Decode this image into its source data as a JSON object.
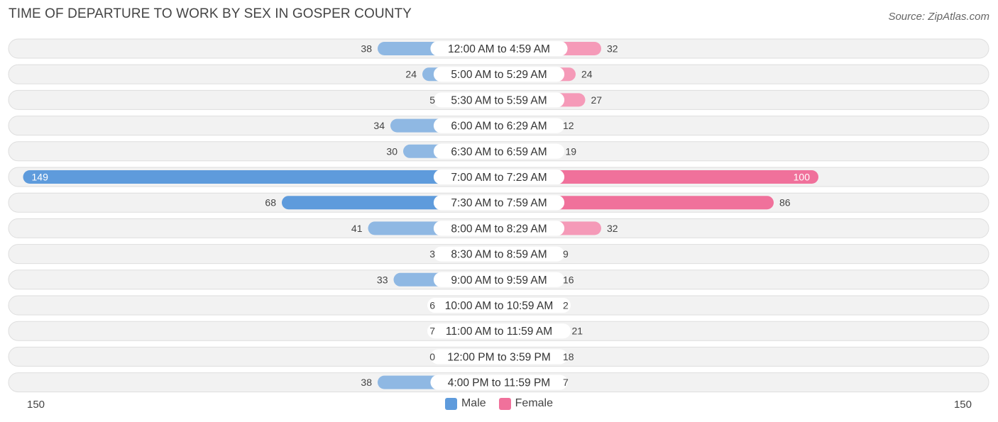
{
  "header": {
    "title": "TIME OF DEPARTURE TO WORK BY SEX IN GOSPER COUNTY",
    "source": "Source: ZipAtlas.com"
  },
  "axis": {
    "left_label": "150",
    "right_label": "150"
  },
  "legend": {
    "male_label": "Male",
    "female_label": "Female"
  },
  "colors": {
    "male": "#8fb8e3",
    "male_strong": "#5e9bdc",
    "female": "#f59ab8",
    "female_strong": "#f0719b",
    "row_bg": "#f2f2f2",
    "row_border": "#dedede"
  },
  "chart_data": {
    "type": "bar",
    "orientation": "diverging-horizontal",
    "title": "TIME OF DEPARTURE TO WORK BY SEX IN GOSPER COUNTY",
    "xlim": [
      -150,
      150
    ],
    "categories": [
      "12:00 AM to 4:59 AM",
      "5:00 AM to 5:29 AM",
      "5:30 AM to 5:59 AM",
      "6:00 AM to 6:29 AM",
      "6:30 AM to 6:59 AM",
      "7:00 AM to 7:29 AM",
      "7:30 AM to 7:59 AM",
      "8:00 AM to 8:29 AM",
      "8:30 AM to 8:59 AM",
      "9:00 AM to 9:59 AM",
      "10:00 AM to 10:59 AM",
      "11:00 AM to 11:59 AM",
      "12:00 PM to 3:59 PM",
      "4:00 PM to 11:59 PM"
    ],
    "series": [
      {
        "name": "Male",
        "values": [
          38,
          24,
          5,
          34,
          30,
          149,
          68,
          41,
          3,
          33,
          6,
          7,
          0,
          38
        ]
      },
      {
        "name": "Female",
        "values": [
          32,
          24,
          27,
          12,
          19,
          100,
          86,
          32,
          9,
          16,
          2,
          21,
          18,
          7
        ]
      }
    ],
    "legend_position": "bottom-center"
  }
}
